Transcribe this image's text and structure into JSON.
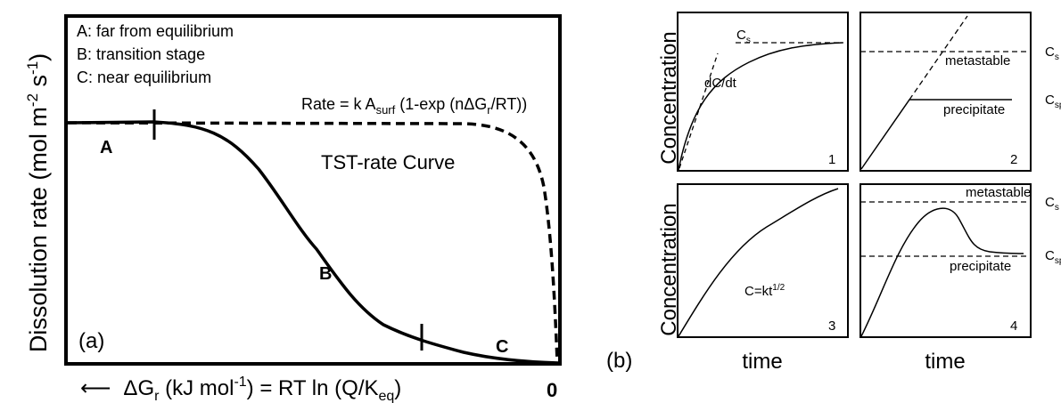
{
  "panel_a": {
    "ylabel": {
      "main": "Dissolution rate (mol m",
      "sup1": "-2",
      "mid": " s",
      "sup2": "-1",
      "end": ")"
    },
    "legend": [
      "A: far from equilibrium",
      "B: transition stage",
      "C: near equilibrium"
    ],
    "rate_eq": {
      "p1": "Rate = k A",
      "sub1": "surf",
      "p2": " (1-exp (nΔG",
      "sub2": "r",
      "p3": "/RT))"
    },
    "tst_label": "TST-rate Curve",
    "region_labels": {
      "a": "A",
      "b": "B",
      "c": "C"
    },
    "panel_tag": "(a)",
    "xlabel": {
      "arrow": "⟵",
      "p1": "ΔG",
      "sub1": "r",
      "p2": " (kJ mol",
      "sup1": "-1",
      "p3": ") = RT ln (Q/K",
      "sub2": "eq",
      "p4": ")"
    },
    "zero_label": "0"
  },
  "panel_b": {
    "panel_tag": "(b)",
    "ylabel": "Concentration",
    "xlabel": "time",
    "cs_label": {
      "main": "C",
      "sub": "s"
    },
    "csp_label": {
      "main": "C",
      "sub": "sp"
    },
    "p1": {
      "num": "1",
      "slope_label": "dC/dt"
    },
    "p2": {
      "num": "2",
      "metastable": "metastable",
      "precipitate": "precipitate"
    },
    "p3": {
      "num": "3",
      "eq": {
        "p1": "C=kt",
        "sup": "1/2"
      }
    },
    "p4": {
      "num": "4",
      "metastable": "metastable",
      "precipitate": "precipitate"
    }
  }
}
